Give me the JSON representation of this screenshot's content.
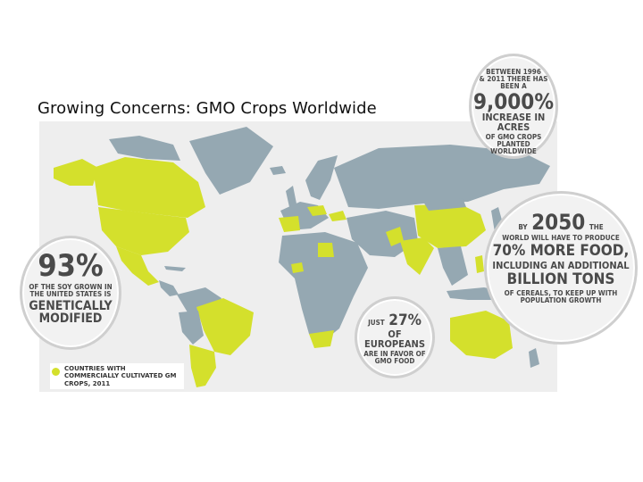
{
  "title": "Growing Concerns: GMO Crops Worldwide",
  "colors": {
    "gm_country": "#d4e02c",
    "other_country": "#95a8b2",
    "ocean": "#eeeeee",
    "bubble_text": "#4a4a4a"
  },
  "callouts": {
    "acres": {
      "line1": "Between 1996",
      "line2": "& 2011 there has been a",
      "figure": "9,000%",
      "line3": "Increase in acres",
      "line4": "of GMO crops planted",
      "line5": "worldwide"
    },
    "food": {
      "line1a": "By",
      "year": "2050",
      "line1b": "the",
      "line2": "world will have to produce",
      "line3": "70% more food,",
      "line4": "including an additional",
      "line5": "billion tons",
      "line6": "of cereals, to keep up with",
      "line7": "population growth"
    },
    "soy": {
      "figure": "93%",
      "line1": "of the soy grown in",
      "line2": "the United States is",
      "line3": "genetically",
      "line4": "modified"
    },
    "europeans": {
      "line1a": "Just",
      "figure": "27%",
      "line2": "of Europeans",
      "line3": "are in favor of",
      "line4": "GMO food"
    }
  },
  "legend": {
    "label": "Countries with commercially cultivated GM crops, 2011"
  }
}
